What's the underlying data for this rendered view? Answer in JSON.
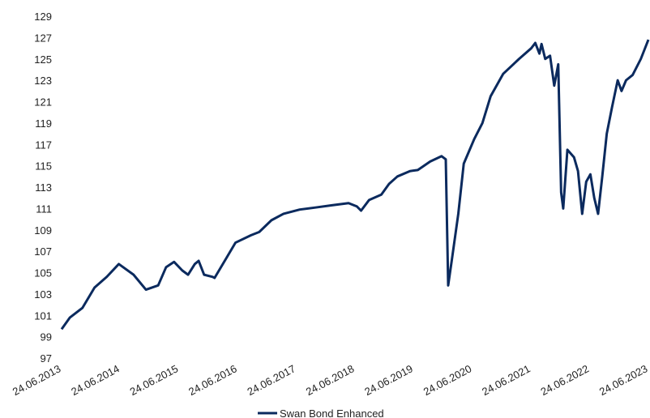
{
  "chart_data": {
    "type": "line",
    "x": [
      "2013-06-24",
      "2013-08-15",
      "2013-11-01",
      "2014-01-15",
      "2014-04-01",
      "2014-06-15",
      "2014-09-15",
      "2014-12-01",
      "2015-02-15",
      "2015-04-05",
      "2015-05-25",
      "2015-07-15",
      "2015-08-20",
      "2015-10-01",
      "2015-10-25",
      "2015-11-28",
      "2016-01-20",
      "2016-02-01",
      "2016-04-20",
      "2016-06-10",
      "2016-09-15",
      "2016-11-05",
      "2017-01-20",
      "2017-04-05",
      "2017-07-15",
      "2017-10-25",
      "2018-02-01",
      "2018-05-15",
      "2018-07-05",
      "2018-08-01",
      "2018-09-20",
      "2018-12-05",
      "2019-01-22",
      "2019-03-15",
      "2019-06-01",
      "2019-07-20",
      "2019-10-05",
      "2019-12-15",
      "2020-01-10",
      "2020-01-25",
      "2020-02-15",
      "2020-03-28",
      "2020-05-01",
      "2020-07-05",
      "2020-08-25",
      "2020-10-15",
      "2021-01-01",
      "2021-04-10",
      "2021-06-25",
      "2021-07-20",
      "2021-08-15",
      "2021-08-28",
      "2021-09-20",
      "2021-10-20",
      "2021-11-15",
      "2021-12-10",
      "2021-12-28",
      "2022-01-10",
      "2022-02-05",
      "2022-03-18",
      "2022-04-12",
      "2022-05-08",
      "2022-06-02",
      "2022-06-28",
      "2022-07-22",
      "2022-08-15",
      "2022-09-10",
      "2022-10-08",
      "2022-11-10",
      "2022-12-15",
      "2023-01-08",
      "2023-02-05",
      "2023-03-18",
      "2023-05-08",
      "2023-06-24"
    ],
    "series": [
      {
        "name": "Swan Bond Enhanced",
        "color": "#0b2a5e",
        "values": [
          99.7,
          100.8,
          101.7,
          103.6,
          104.6,
          105.8,
          104.8,
          103.4,
          103.8,
          105.5,
          106.0,
          105.2,
          104.8,
          105.8,
          106.1,
          104.8,
          104.6,
          104.5,
          106.5,
          107.8,
          108.5,
          108.8,
          109.9,
          110.5,
          110.9,
          111.1,
          111.3,
          111.5,
          111.2,
          110.8,
          111.8,
          112.3,
          113.3,
          114.0,
          114.5,
          114.6,
          115.4,
          115.9,
          115.6,
          103.8,
          106.0,
          110.5,
          115.2,
          117.5,
          119.0,
          121.5,
          123.6,
          125.0,
          126.0,
          126.5,
          125.5,
          126.4,
          125.0,
          125.3,
          122.5,
          124.5,
          112.5,
          111.0,
          116.5,
          115.8,
          114.5,
          110.5,
          113.5,
          114.2,
          112.0,
          110.5,
          114.0,
          118.0,
          120.5,
          123.0,
          122.0,
          123.0,
          123.5,
          125.0,
          126.8
        ]
      }
    ],
    "xlim": [
      "2013-06-24",
      "2023-06-24"
    ],
    "xticks": [
      {
        "value": "2013-06-24",
        "label": "24.06.2013"
      },
      {
        "value": "2014-06-24",
        "label": "24.06.2014"
      },
      {
        "value": "2015-06-24",
        "label": "24.06.2015"
      },
      {
        "value": "2016-06-24",
        "label": "24.06.2016"
      },
      {
        "value": "2017-06-24",
        "label": "24.06.2017"
      },
      {
        "value": "2018-06-24",
        "label": "24.06.2018"
      },
      {
        "value": "2019-06-24",
        "label": "24.06.2019"
      },
      {
        "value": "2020-06-24",
        "label": "24.06.2020"
      },
      {
        "value": "2021-06-24",
        "label": "24.06.2021"
      },
      {
        "value": "2022-06-24",
        "label": "24.06.2022"
      },
      {
        "value": "2023-06-24",
        "label": "24.06.2023"
      }
    ],
    "ylim": [
      97,
      129
    ],
    "yticks": [
      97,
      99,
      101,
      103,
      105,
      107,
      109,
      111,
      113,
      115,
      117,
      119,
      121,
      123,
      125,
      127,
      129
    ],
    "grid": false,
    "legend": "bottom"
  }
}
